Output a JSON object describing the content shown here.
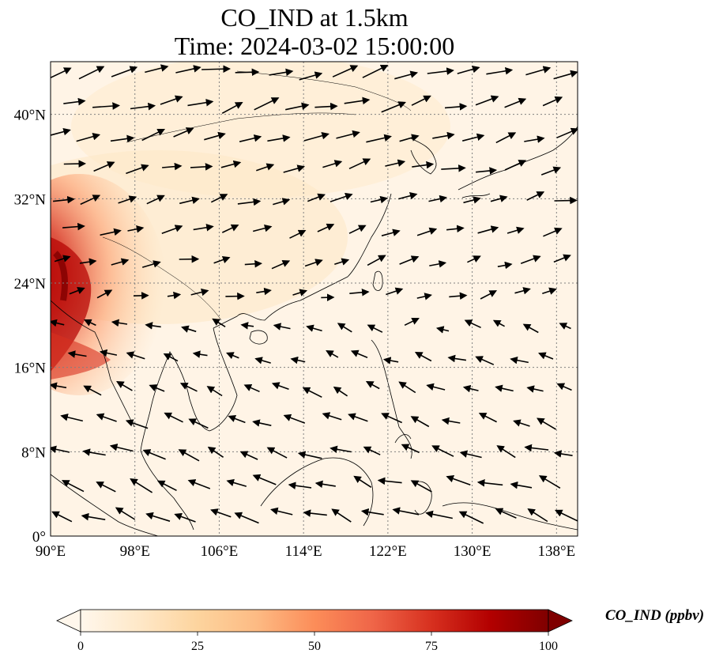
{
  "title": {
    "line1": "CO_IND at 1.5km",
    "line2": "Time: 2024-03-02 15:00:00"
  },
  "map": {
    "lon_range": [
      90,
      140
    ],
    "lat_range": [
      0,
      45
    ],
    "lon_ticks": [
      "90°E",
      "98°E",
      "106°E",
      "114°E",
      "122°E",
      "130°E",
      "138°E"
    ],
    "lon_tick_values": [
      90,
      98,
      106,
      114,
      122,
      130,
      138
    ],
    "lat_ticks": [
      "0°",
      "8°N",
      "16°N",
      "24°N",
      "32°N",
      "40°N"
    ],
    "lat_tick_values": [
      0,
      8,
      16,
      24,
      32,
      40
    ],
    "gridlines": "dotted",
    "vector_field": "wind arrows (black)",
    "high_concentration_region": "Myanmar / NE India / Yunnan (approx. 16–30°N, 90–100°E)"
  },
  "colorbar": {
    "label": "CO_IND (ppbv)",
    "ticks": [
      "0",
      "25",
      "50",
      "75",
      "100"
    ],
    "tick_values": [
      0,
      25,
      50,
      75,
      100
    ],
    "range": [
      0,
      100
    ],
    "extend": "both",
    "colormap": "OrRd",
    "colors": [
      "#fff7ec",
      "#fee8c8",
      "#fdd49e",
      "#fdbb84",
      "#fc8d59",
      "#ef6548",
      "#d7301f",
      "#b30000",
      "#7f0000"
    ]
  }
}
